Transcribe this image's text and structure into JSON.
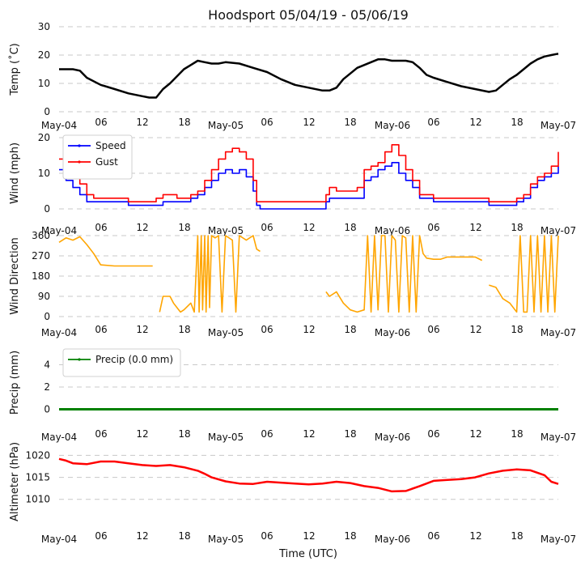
{
  "title": "Hoodsport 05/04/19 - 05/06/19",
  "x_label": "Time (UTC)",
  "x_tick_labels": [
    "May-04",
    "06",
    "12",
    "18",
    "May-05",
    "06",
    "12",
    "18",
    "May-06",
    "06",
    "12",
    "18",
    "May-07"
  ],
  "colors": {
    "temp": "#000000",
    "speed": "#0000ff",
    "gust": "#ff0000",
    "direction": "#ffa500",
    "precip": "#008000",
    "altimeter": "#ff0000",
    "grid": "#c8c8c8"
  },
  "chart_data": [
    {
      "type": "line",
      "id": "temp",
      "ylabel": "Temp ($^\\circ$C)",
      "ylabel_display": "Temp (˚C)",
      "ylim": [
        0,
        30
      ],
      "yticks": [
        0,
        10,
        20,
        30
      ],
      "x_range_hours": [
        0,
        72
      ],
      "series": [
        {
          "name": "Temp",
          "color": "#000000",
          "x": [
            0,
            2,
            3,
            4,
            6,
            8,
            10,
            12,
            13,
            14,
            15,
            16,
            17,
            18,
            19,
            20,
            21,
            22,
            23,
            24,
            26,
            28,
            30,
            32,
            34,
            36,
            38,
            39,
            40,
            41,
            42,
            43,
            44,
            45,
            46,
            47,
            48,
            50,
            51,
            52,
            53,
            54,
            56,
            58,
            60,
            62,
            63,
            64,
            65,
            66,
            67,
            68,
            69,
            70,
            71,
            72
          ],
          "y": [
            15,
            15,
            14.5,
            12,
            9.5,
            8,
            6.5,
            5.5,
            5,
            5,
            8,
            10,
            12.5,
            15,
            16.5,
            18,
            17.5,
            17,
            17,
            17.5,
            17,
            15.5,
            14,
            11.5,
            9.5,
            8.5,
            7.5,
            7.5,
            8.5,
            11.5,
            13.5,
            15.5,
            16.5,
            17.5,
            18.5,
            18.5,
            18,
            18,
            17.5,
            15.5,
            13,
            12,
            10.5,
            9,
            8,
            7,
            7.5,
            9.5,
            11.5,
            13,
            15,
            17,
            18.5,
            19.5,
            20,
            20.5
          ]
        }
      ]
    },
    {
      "type": "line",
      "id": "wind",
      "ylabel": "Wind (mph)",
      "ylim": [
        0,
        20
      ],
      "yticks": [
        0,
        10,
        20
      ],
      "x_range_hours": [
        0,
        72
      ],
      "legend": [
        "Speed",
        "Gust"
      ],
      "legend_position": "upper-left",
      "series": [
        {
          "name": "Speed",
          "color": "#0000ff",
          "x": [
            0,
            1,
            2,
            3,
            4,
            5,
            7,
            9,
            10,
            12,
            14,
            15,
            16,
            17,
            18,
            19,
            20,
            21,
            22,
            23,
            24,
            25,
            26,
            27,
            28,
            28.5,
            29,
            30,
            34,
            38,
            38.5,
            39,
            40,
            41,
            42,
            43,
            44,
            45,
            46,
            47,
            48,
            49,
            50,
            51,
            52,
            54,
            56,
            58,
            60,
            61,
            62,
            64,
            66,
            67,
            68,
            69,
            70,
            71,
            72
          ],
          "y": [
            11,
            8,
            6,
            4,
            2,
            2,
            2,
            2,
            1,
            1,
            1,
            2,
            2,
            2,
            2,
            3,
            4,
            6,
            8,
            10,
            11,
            10,
            11,
            9,
            5,
            1,
            0,
            0,
            0,
            0,
            2,
            3,
            3,
            3,
            3,
            3,
            8,
            9,
            11,
            12,
            13,
            10,
            8,
            6,
            3,
            2,
            2,
            2,
            2,
            2,
            1,
            1,
            2,
            3,
            6,
            8,
            9,
            10,
            12
          ]
        },
        {
          "name": "Gust",
          "color": "#ff0000",
          "x": [
            0,
            1,
            2,
            3,
            4,
            5,
            7,
            9,
            10,
            12,
            14,
            15,
            16,
            17,
            18,
            19,
            20,
            21,
            22,
            23,
            24,
            25,
            26,
            27,
            28,
            28.5,
            29,
            38.5,
            39,
            40,
            41,
            42,
            43,
            44,
            45,
            46,
            47,
            48,
            49,
            50,
            51,
            52,
            54,
            56,
            58,
            60,
            61,
            62,
            64,
            66,
            67,
            68,
            69,
            70,
            71,
            72
          ],
          "y": [
            14,
            13,
            11,
            7,
            4,
            3,
            3,
            3,
            2,
            2,
            3,
            4,
            4,
            3,
            3,
            4,
            5,
            8,
            11,
            14,
            16,
            17,
            16,
            14,
            8,
            2,
            2,
            4,
            6,
            5,
            5,
            5,
            6,
            11,
            12,
            13,
            16,
            18,
            15,
            11,
            8,
            4,
            3,
            3,
            3,
            3,
            3,
            2,
            2,
            3,
            4,
            7,
            9,
            10,
            12,
            16
          ]
        }
      ]
    },
    {
      "type": "line",
      "id": "direction",
      "ylabel": "Wind Direction",
      "ylim": [
        0,
        360
      ],
      "yticks": [
        0,
        90,
        180,
        270,
        360
      ],
      "x_range_hours": [
        0,
        72
      ],
      "series": [
        {
          "name": "Direction",
          "color": "#ffa500",
          "segments": [
            {
              "x": [
                0,
                1,
                2,
                3,
                4,
                5,
                6,
                8,
                10,
                12,
                13.5
              ],
              "y": [
                330,
                350,
                340,
                355,
                320,
                280,
                230,
                225,
                225,
                225,
                225
              ]
            },
            {
              "x": [
                14.5,
                15,
                16,
                16.5,
                17,
                17.5,
                18,
                19,
                19.5,
                20,
                20.2,
                20.5,
                20.7,
                21,
                21.2,
                21.5,
                21.7,
                22,
                22.5,
                23,
                23.5,
                24,
                25,
                25.5,
                26,
                27,
                28,
                28.5,
                29
              ],
              "y": [
                20,
                90,
                90,
                60,
                40,
                20,
                30,
                60,
                20,
                360,
                20,
                360,
                30,
                360,
                20,
                360,
                40,
                360,
                350,
                360,
                20,
                360,
                340,
                20,
                360,
                340,
                360,
                300,
                290
              ]
            },
            {
              "x": [
                38.5,
                39,
                40,
                41,
                42,
                43,
                44,
                44.5,
                45,
                45.5,
                46,
                46.5,
                47,
                47.5,
                48,
                48.5,
                49,
                49.5,
                50,
                50.5,
                51,
                51.5,
                52,
                52.5,
                53,
                54,
                55,
                56,
                58,
                60,
                61
              ],
              "y": [
                110,
                90,
                110,
                60,
                30,
                20,
                30,
                360,
                20,
                360,
                30,
                360,
                360,
                20,
                360,
                340,
                20,
                360,
                350,
                20,
                360,
                20,
                360,
                280,
                260,
                255,
                255,
                265,
                265,
                265,
                250
              ]
            },
            {
              "x": [
                62,
                63,
                64,
                65,
                66,
                66.5,
                67,
                67.5,
                68,
                68.5,
                69,
                69.5,
                70,
                70.5,
                71,
                71.5,
                72
              ],
              "y": [
                140,
                130,
                80,
                60,
                20,
                360,
                20,
                20,
                360,
                20,
                360,
                20,
                360,
                20,
                360,
                20,
                360
              ]
            }
          ]
        }
      ]
    },
    {
      "type": "line",
      "id": "precip",
      "ylabel": "Precip (mm)",
      "ylim": [
        -0.4,
        5.2
      ],
      "yticks": [
        0,
        2,
        4
      ],
      "x_range_hours": [
        0,
        72
      ],
      "legend": [
        "Precip (0.0 mm)"
      ],
      "legend_position": "upper-left",
      "series": [
        {
          "name": "Precip (0.0 mm)",
          "color": "#008000",
          "x": [
            0,
            72
          ],
          "y": [
            0,
            0
          ]
        }
      ]
    },
    {
      "type": "line",
      "id": "altimeter",
      "ylabel": "Altimeter (hPa)",
      "ylim": [
        1007,
        1021
      ],
      "yticks": [
        1010,
        1015,
        1020
      ],
      "x_range_hours": [
        0,
        72
      ],
      "series": [
        {
          "name": "Altimeter",
          "color": "#ff0000",
          "x": [
            0,
            1,
            2,
            4,
            6,
            8,
            10,
            12,
            14,
            16,
            18,
            20,
            21,
            22,
            24,
            26,
            28,
            30,
            32,
            34,
            36,
            38,
            40,
            42,
            44,
            46,
            48,
            50,
            52,
            54,
            56,
            58,
            60,
            62,
            64,
            66,
            68,
            70,
            71,
            72
          ],
          "y": [
            1019.2,
            1018.8,
            1018.2,
            1018.0,
            1018.6,
            1018.6,
            1018.2,
            1017.8,
            1017.6,
            1017.8,
            1017.3,
            1016.5,
            1015.8,
            1015.0,
            1014.1,
            1013.6,
            1013.5,
            1014.0,
            1013.8,
            1013.6,
            1013.4,
            1013.6,
            1014.0,
            1013.7,
            1013.0,
            1012.6,
            1011.8,
            1011.9,
            1013.0,
            1014.2,
            1014.4,
            1014.6,
            1015.0,
            1015.9,
            1016.5,
            1016.8,
            1016.6,
            1015.5,
            1014.0,
            1013.5
          ]
        }
      ]
    }
  ]
}
